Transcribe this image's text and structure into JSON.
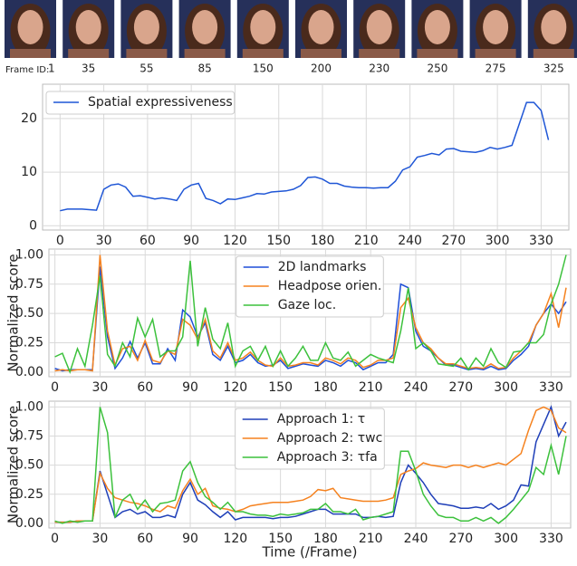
{
  "frame_strip": {
    "label": "Frame ID:",
    "ids": [
      1,
      35,
      55,
      85,
      150,
      200,
      230,
      250,
      275,
      325
    ]
  },
  "chart_data": [
    {
      "type": "line",
      "legend": "upper left",
      "grid": true,
      "x": [
        0,
        5,
        10,
        15,
        20,
        25,
        30,
        35,
        40,
        45,
        50,
        55,
        60,
        65,
        70,
        75,
        80,
        85,
        90,
        95,
        100,
        105,
        110,
        115,
        120,
        125,
        130,
        135,
        140,
        145,
        150,
        155,
        160,
        165,
        170,
        175,
        180,
        185,
        190,
        195,
        200,
        205,
        210,
        215,
        220,
        225,
        230,
        235,
        240,
        245,
        250,
        255,
        260,
        265,
        270,
        275,
        280,
        285,
        290,
        295,
        300,
        305,
        310,
        315,
        320,
        325,
        330,
        335
      ],
      "xlim": [
        -12,
        349
      ],
      "xticks": [
        0,
        30,
        60,
        90,
        120,
        150,
        180,
        210,
        240,
        270,
        300,
        330
      ],
      "ylim": [
        -0.8,
        26.4
      ],
      "yticks": [
        0,
        10,
        20
      ],
      "series": [
        {
          "name": "Spatial expressiveness",
          "color": "#1f56d6",
          "values": [
            2.8,
            3.1,
            3.1,
            3.1,
            3.0,
            2.9,
            6.8,
            7.6,
            7.8,
            7.2,
            5.5,
            5.6,
            5.3,
            5.0,
            5.2,
            5.0,
            4.7,
            6.8,
            7.6,
            7.9,
            5.1,
            4.7,
            4.1,
            5.0,
            4.9,
            5.2,
            5.5,
            6.0,
            5.9,
            6.3,
            6.4,
            6.5,
            6.8,
            7.5,
            9.0,
            9.1,
            8.7,
            7.9,
            7.9,
            7.4,
            7.2,
            7.1,
            7.1,
            7.0,
            7.1,
            7.1,
            8.3,
            10.4,
            11.0,
            12.8,
            13.1,
            13.5,
            13.2,
            14.3,
            14.4,
            13.9,
            13.8,
            13.7,
            14.0,
            14.6,
            14.3,
            14.6,
            15.0,
            19.0,
            23.0,
            23.0,
            21.5,
            16.0
          ]
        }
      ]
    },
    {
      "type": "line",
      "legend": "upper center",
      "grid": true,
      "ylabel": "Normalized score",
      "x": [
        0,
        5,
        10,
        15,
        20,
        25,
        30,
        35,
        40,
        45,
        50,
        55,
        60,
        65,
        70,
        75,
        80,
        85,
        90,
        95,
        100,
        105,
        110,
        115,
        120,
        125,
        130,
        135,
        140,
        145,
        150,
        155,
        160,
        165,
        170,
        175,
        180,
        185,
        190,
        195,
        200,
        205,
        210,
        215,
        220,
        225,
        230,
        235,
        240,
        245,
        250,
        255,
        260,
        265,
        270,
        275,
        280,
        285,
        290,
        295,
        300,
        305,
        310,
        315,
        320,
        325,
        330,
        335,
        340
      ],
      "xlim": [
        -4,
        343
      ],
      "xticks": [
        0,
        30,
        60,
        90,
        120,
        150,
        180,
        210,
        240,
        270,
        300,
        330
      ],
      "ylim": [
        -0.04,
        1.05
      ],
      "yticks": [
        {
          "value": 0,
          "label": "0.00"
        },
        {
          "value": 0.25,
          "label": "0.25"
        },
        {
          "value": 0.5,
          "label": "0.50"
        },
        {
          "value": 0.75,
          "label": "0.75"
        },
        {
          "value": 1,
          "label": "1.00"
        }
      ],
      "series": [
        {
          "name": "2D landmarks",
          "color": "#1f4fd8",
          "values": [
            0.03,
            0.01,
            0.02,
            0.02,
            0.02,
            0.02,
            0.9,
            0.3,
            0.03,
            0.12,
            0.26,
            0.12,
            0.25,
            0.07,
            0.07,
            0.2,
            0.1,
            0.53,
            0.47,
            0.3,
            0.42,
            0.15,
            0.1,
            0.22,
            0.08,
            0.1,
            0.15,
            0.08,
            0.05,
            0.06,
            0.1,
            0.03,
            0.05,
            0.07,
            0.06,
            0.05,
            0.1,
            0.08,
            0.05,
            0.1,
            0.08,
            0.02,
            0.05,
            0.08,
            0.08,
            0.15,
            0.75,
            0.72,
            0.35,
            0.22,
            0.18,
            0.12,
            0.06,
            0.06,
            0.04,
            0.02,
            0.03,
            0.02,
            0.05,
            0.02,
            0.03,
            0.1,
            0.15,
            0.22,
            0.4,
            0.5,
            0.58,
            0.5,
            0.6
          ]
        },
        {
          "name": "Headpose orien.",
          "color": "#f5821f",
          "values": [
            0.01,
            0.02,
            0.01,
            0.02,
            0.02,
            0.01,
            1.0,
            0.35,
            0.06,
            0.2,
            0.22,
            0.1,
            0.27,
            0.1,
            0.08,
            0.18,
            0.15,
            0.45,
            0.4,
            0.28,
            0.45,
            0.18,
            0.12,
            0.25,
            0.1,
            0.12,
            0.17,
            0.1,
            0.06,
            0.05,
            0.12,
            0.05,
            0.06,
            0.08,
            0.08,
            0.06,
            0.12,
            0.1,
            0.07,
            0.12,
            0.1,
            0.04,
            0.06,
            0.1,
            0.1,
            0.12,
            0.55,
            0.63,
            0.38,
            0.25,
            0.2,
            0.12,
            0.07,
            0.07,
            0.05,
            0.03,
            0.04,
            0.03,
            0.07,
            0.03,
            0.04,
            0.12,
            0.18,
            0.25,
            0.4,
            0.5,
            0.67,
            0.38,
            0.72
          ]
        },
        {
          "name": "Gaze loc.",
          "color": "#3cc13c",
          "values": [
            0.13,
            0.16,
            0.0,
            0.2,
            0.05,
            0.4,
            0.82,
            0.15,
            0.05,
            0.25,
            0.13,
            0.46,
            0.3,
            0.45,
            0.13,
            0.18,
            0.18,
            0.3,
            0.95,
            0.22,
            0.55,
            0.28,
            0.2,
            0.42,
            0.05,
            0.18,
            0.22,
            0.1,
            0.22,
            0.05,
            0.18,
            0.05,
            0.12,
            0.22,
            0.1,
            0.1,
            0.25,
            0.12,
            0.1,
            0.17,
            0.05,
            0.1,
            0.15,
            0.12,
            0.1,
            0.08,
            0.35,
            0.72,
            0.2,
            0.25,
            0.18,
            0.07,
            0.06,
            0.05,
            0.12,
            0.02,
            0.12,
            0.05,
            0.2,
            0.08,
            0.04,
            0.17,
            0.18,
            0.25,
            0.25,
            0.32,
            0.58,
            0.75,
            1.0
          ]
        }
      ]
    },
    {
      "type": "line",
      "legend": "upper center",
      "grid": true,
      "ylabel": "Normalized score",
      "xlabel": "Time (/Frame)",
      "x": [
        0,
        5,
        10,
        15,
        20,
        25,
        30,
        35,
        40,
        45,
        50,
        55,
        60,
        65,
        70,
        75,
        80,
        85,
        90,
        95,
        100,
        105,
        110,
        115,
        120,
        125,
        130,
        135,
        140,
        145,
        150,
        155,
        160,
        165,
        170,
        175,
        180,
        185,
        190,
        195,
        200,
        205,
        210,
        215,
        220,
        225,
        230,
        235,
        240,
        245,
        250,
        255,
        260,
        265,
        270,
        275,
        280,
        285,
        290,
        295,
        300,
        305,
        310,
        315,
        320,
        325,
        330,
        335,
        340
      ],
      "xlim": [
        -4,
        343
      ],
      "xticks": [
        0,
        30,
        60,
        90,
        120,
        150,
        180,
        210,
        240,
        270,
        300,
        330
      ],
      "ylim": [
        -0.04,
        1.05
      ],
      "yticks": [
        {
          "value": 0,
          "label": "0.00"
        },
        {
          "value": 0.25,
          "label": "0.25"
        },
        {
          "value": 0.5,
          "label": "0.50"
        },
        {
          "value": 0.75,
          "label": "0.75"
        },
        {
          "value": 1,
          "label": "1.00"
        }
      ],
      "series": [
        {
          "name": "Approach 1: τ",
          "color": "#1f3fb8",
          "values": [
            0.01,
            0.01,
            0.01,
            0.02,
            0.02,
            0.02,
            0.45,
            0.25,
            0.05,
            0.1,
            0.12,
            0.08,
            0.1,
            0.05,
            0.05,
            0.07,
            0.05,
            0.25,
            0.35,
            0.2,
            0.16,
            0.1,
            0.05,
            0.1,
            0.03,
            0.05,
            0.05,
            0.05,
            0.05,
            0.04,
            0.05,
            0.05,
            0.06,
            0.08,
            0.1,
            0.12,
            0.12,
            0.08,
            0.08,
            0.08,
            0.08,
            0.05,
            0.05,
            0.06,
            0.05,
            0.06,
            0.35,
            0.5,
            0.43,
            0.35,
            0.25,
            0.17,
            0.16,
            0.15,
            0.13,
            0.13,
            0.14,
            0.13,
            0.17,
            0.12,
            0.15,
            0.2,
            0.33,
            0.32,
            0.7,
            0.85,
            1.0,
            0.75,
            0.87
          ]
        },
        {
          "name": "Approach 2: τwc",
          "color": "#f5821f",
          "values": [
            0.01,
            0.01,
            0.01,
            0.02,
            0.02,
            0.02,
            0.43,
            0.3,
            0.22,
            0.2,
            0.18,
            0.17,
            0.15,
            0.12,
            0.1,
            0.15,
            0.13,
            0.28,
            0.38,
            0.25,
            0.3,
            0.15,
            0.13,
            0.12,
            0.1,
            0.12,
            0.15,
            0.16,
            0.17,
            0.18,
            0.18,
            0.18,
            0.19,
            0.2,
            0.23,
            0.29,
            0.28,
            0.3,
            0.22,
            0.21,
            0.2,
            0.19,
            0.19,
            0.19,
            0.2,
            0.22,
            0.42,
            0.45,
            0.47,
            0.52,
            0.5,
            0.49,
            0.48,
            0.5,
            0.5,
            0.48,
            0.5,
            0.48,
            0.5,
            0.52,
            0.5,
            0.55,
            0.6,
            0.8,
            0.97,
            1.0,
            0.97,
            0.82,
            0.78
          ]
        },
        {
          "name": "Approach 3: τfa",
          "color": "#3cc13c",
          "values": [
            0.02,
            0.0,
            0.02,
            0.01,
            0.02,
            0.02,
            1.0,
            0.78,
            0.05,
            0.2,
            0.25,
            0.12,
            0.2,
            0.1,
            0.17,
            0.18,
            0.2,
            0.45,
            0.53,
            0.35,
            0.23,
            0.18,
            0.12,
            0.18,
            0.1,
            0.1,
            0.08,
            0.07,
            0.07,
            0.06,
            0.08,
            0.07,
            0.08,
            0.09,
            0.12,
            0.12,
            0.17,
            0.1,
            0.1,
            0.08,
            0.12,
            0.03,
            0.05,
            0.06,
            0.08,
            0.1,
            0.62,
            0.62,
            0.45,
            0.25,
            0.15,
            0.07,
            0.05,
            0.05,
            0.02,
            0.02,
            0.05,
            0.02,
            0.05,
            0.0,
            0.05,
            0.12,
            0.2,
            0.28,
            0.48,
            0.42,
            0.67,
            0.42,
            0.75
          ]
        }
      ]
    }
  ]
}
